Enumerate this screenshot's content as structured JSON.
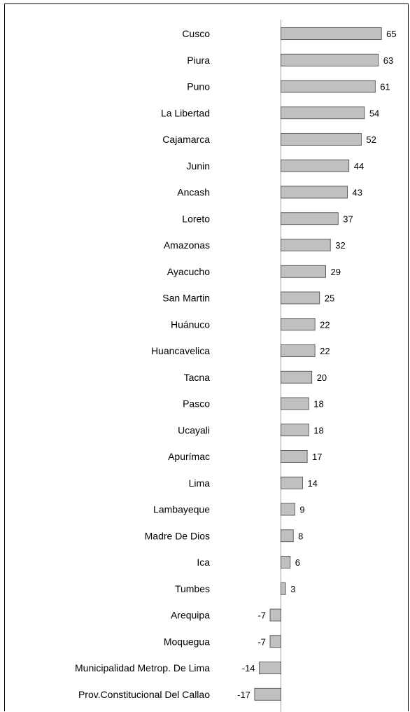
{
  "chart_data": {
    "type": "bar",
    "orientation": "horizontal",
    "categories": [
      "Cusco",
      "Piura",
      "Puno",
      "La Libertad",
      "Cajamarca",
      "Junin",
      "Ancash",
      "Loreto",
      "Amazonas",
      "Ayacucho",
      "San Martin",
      "Huánuco",
      "Huancavelica",
      "Tacna",
      "Pasco",
      "Ucayali",
      "Apurímac",
      "Lima",
      "Lambayeque",
      "Madre De Dios",
      "Ica",
      "Tumbes",
      "Arequipa",
      "Moquegua",
      "Municipalidad Metrop. De Lima",
      "Prov.Constitucional Del Callao"
    ],
    "values": [
      65,
      63,
      61,
      54,
      52,
      44,
      43,
      37,
      32,
      29,
      25,
      22,
      22,
      20,
      18,
      18,
      17,
      14,
      9,
      8,
      6,
      3,
      -7,
      -7,
      -14,
      -17
    ],
    "title": "",
    "xlabel": "",
    "ylabel": "",
    "xlim": [
      -17,
      65
    ],
    "grid": false,
    "legend": "none",
    "data_labels": true,
    "colors": {
      "bar_fill": "#c0c0c0",
      "bar_stroke": "#404040",
      "axis": "#a0a0a0",
      "text": "#000000"
    }
  }
}
